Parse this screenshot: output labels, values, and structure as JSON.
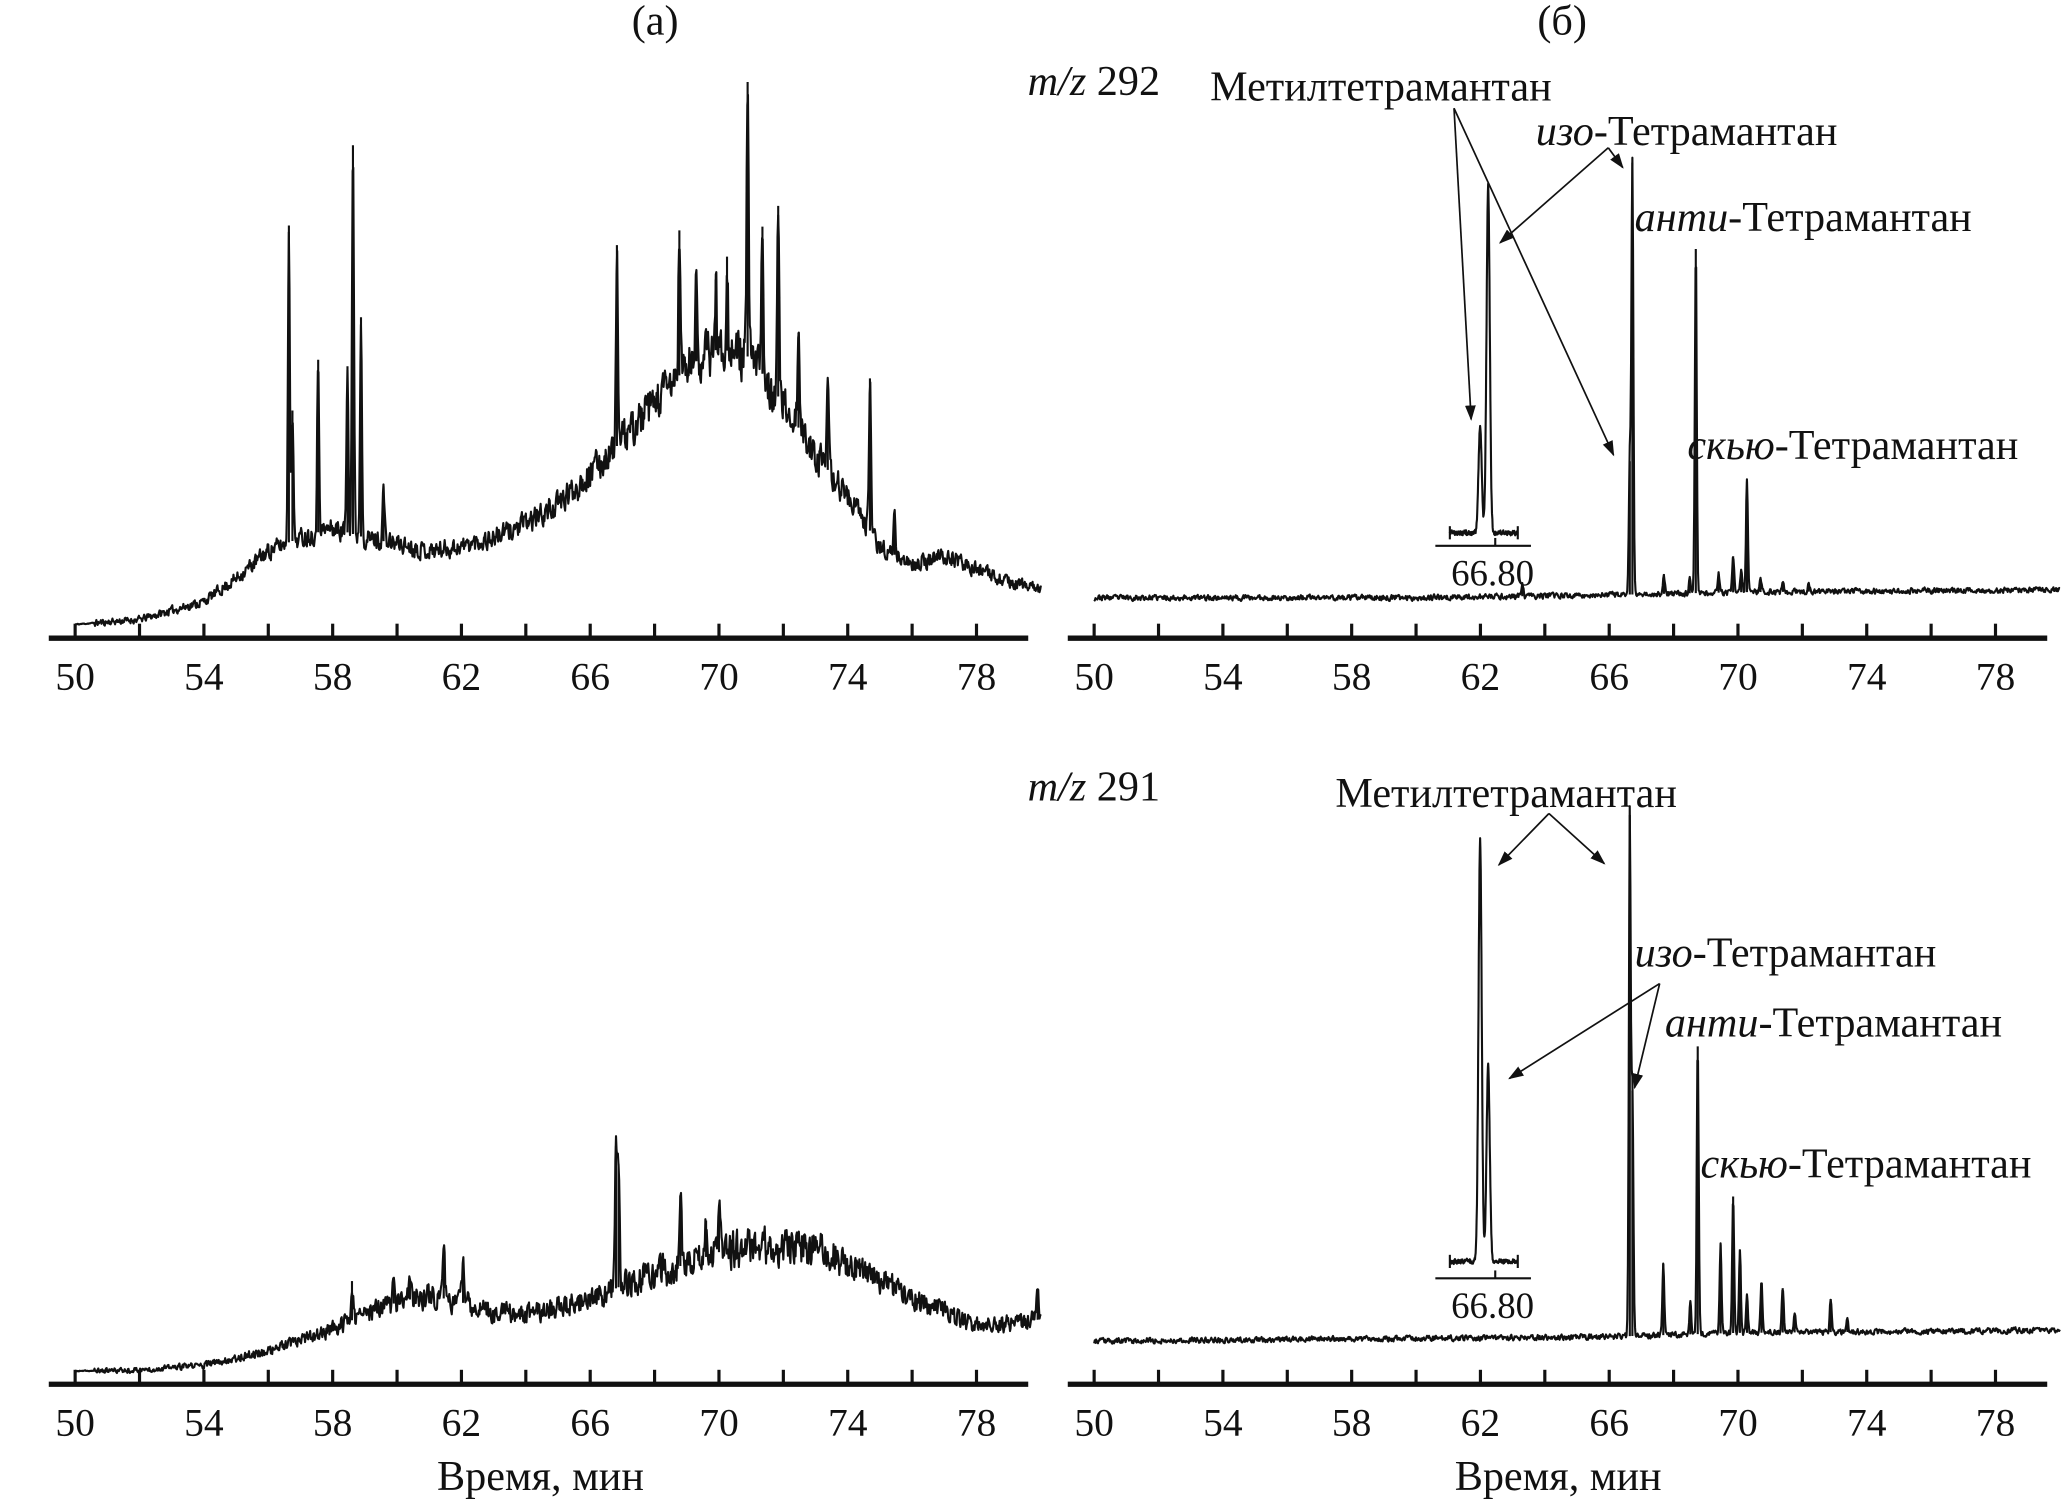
{
  "figure": {
    "panel_labels": [
      "(а)",
      "(б)"
    ],
    "rows": [
      {
        "ion_prefix": "m/z",
        "ion": "292"
      },
      {
        "ion_prefix": "m/z",
        "ion": "291"
      }
    ],
    "xlabel": "Время, мин"
  },
  "annotations": {
    "292": {
      "methyl": "Метилтетрамантан",
      "iso": {
        "prefix": "изо",
        "name": "-Тетрамантан"
      },
      "anti": {
        "prefix": "анти",
        "name": "-Тетрамантан"
      },
      "skew": {
        "prefix": "скью",
        "name": "-Тетрамантан"
      }
    },
    "291": {
      "methyl": "Метилтетрамантан",
      "iso": {
        "prefix": "изо",
        "name": "-Тетрамантан"
      },
      "anti": {
        "prefix": "анти",
        "name": "-Тетрамантан"
      },
      "skew": {
        "prefix": "скью",
        "name": "-Тетрамантан"
      }
    }
  },
  "chart_data": [
    {
      "id": "a-292",
      "panel": "(а)",
      "ion": "m/z 292",
      "type": "line",
      "xlabel": "",
      "xlim": [
        50,
        80
      ],
      "ylim": [
        0,
        105
      ],
      "xticks": [
        50,
        52,
        54,
        56,
        58,
        60,
        62,
        64,
        66,
        68,
        70,
        72,
        74,
        76,
        78
      ],
      "xtick_labels": [
        "50",
        "54",
        "58",
        "62",
        "66",
        "70",
        "74",
        "78"
      ],
      "background": [
        [
          50,
          0.1
        ],
        [
          52,
          1
        ],
        [
          54,
          4.3
        ],
        [
          55,
          8.5
        ],
        [
          56,
          13.6
        ],
        [
          57,
          16
        ],
        [
          58,
          17.8
        ],
        [
          59,
          16
        ],
        [
          60,
          14.9
        ],
        [
          61,
          13.6
        ],
        [
          62,
          14.4
        ],
        [
          63,
          16
        ],
        [
          64,
          18.6
        ],
        [
          65,
          22
        ],
        [
          66,
          27.9
        ],
        [
          67,
          33.8
        ],
        [
          68,
          40.5
        ],
        [
          69,
          47.3
        ],
        [
          70,
          50.7
        ],
        [
          71,
          49
        ],
        [
          72,
          40.5
        ],
        [
          73,
          31.3
        ],
        [
          74,
          23.7
        ],
        [
          75,
          14.4
        ],
        [
          76,
          11
        ],
        [
          77,
          12.7
        ],
        [
          78,
          10.2
        ],
        [
          79,
          7.7
        ],
        [
          80,
          6.8
        ]
      ],
      "peaks": [
        [
          56.64,
          73.2
        ],
        [
          56.75,
          39.3
        ],
        [
          57.55,
          48.6
        ],
        [
          58.46,
          47.4
        ],
        [
          58.63,
          87.9
        ],
        [
          58.88,
          56.4
        ],
        [
          59.58,
          25.4
        ],
        [
          66.83,
          69.6
        ],
        [
          68.77,
          72.3
        ],
        [
          69.3,
          64.1
        ],
        [
          69.9,
          63.3
        ],
        [
          70.25,
          67.5
        ],
        [
          70.89,
          99.5
        ],
        [
          71.35,
          73
        ],
        [
          71.84,
          76.8
        ],
        [
          72.47,
          53.6
        ],
        [
          73.38,
          43.9
        ],
        [
          74.69,
          45.2
        ],
        [
          75.45,
          20.3
        ]
      ]
    },
    {
      "id": "b-292",
      "panel": "(б)",
      "ion": "m/z 292",
      "type": "line",
      "xlabel": "",
      "xlim": [
        50,
        80
      ],
      "ylim": [
        0,
        105
      ],
      "xticks": [
        50,
        52,
        54,
        56,
        58,
        60,
        62,
        64,
        66,
        68,
        70,
        72,
        74,
        76,
        78
      ],
      "xtick_labels": [
        "50",
        "54",
        "58",
        "62",
        "66",
        "70",
        "74",
        "78"
      ],
      "background": [
        [
          50,
          5
        ],
        [
          60,
          5
        ],
        [
          66,
          5.5
        ],
        [
          70,
          6
        ],
        [
          80,
          6.5
        ]
      ],
      "peaks": [
        [
          63.3,
          7.5
        ],
        [
          66.64,
          30
        ],
        [
          66.72,
          84.7
        ],
        [
          67.7,
          9.3
        ],
        [
          68.5,
          8.4
        ],
        [
          68.69,
          68.9
        ],
        [
          69.4,
          9.3
        ],
        [
          69.85,
          12.6
        ],
        [
          70.1,
          9.7
        ],
        [
          70.28,
          26.3
        ],
        [
          70.7,
          8.4
        ],
        [
          71.4,
          7.9
        ],
        [
          72.2,
          7.5
        ]
      ],
      "inset": {
        "label": "66.80",
        "x_range": [
          61.05,
          63.16
        ],
        "center": 62.46,
        "baseline": 16.9,
        "bar_level": 14.5,
        "peaks": [
          [
            61.99,
            36.7
          ],
          [
            62.24,
            80.7
          ]
        ]
      }
    },
    {
      "id": "a-291",
      "panel": "(а)",
      "ion": "m/z 291",
      "type": "line",
      "xlabel": "Время, мин",
      "xlim": [
        50,
        80
      ],
      "ylim": [
        0,
        105
      ],
      "xticks": [
        50,
        52,
        54,
        56,
        58,
        60,
        62,
        64,
        66,
        68,
        70,
        72,
        74,
        76,
        78
      ],
      "xtick_labels": [
        "50",
        "54",
        "58",
        "62",
        "66",
        "70",
        "74",
        "78"
      ],
      "background": [
        [
          50,
          0
        ],
        [
          52,
          0.2
        ],
        [
          54,
          1.1
        ],
        [
          56,
          3.7
        ],
        [
          57,
          5.5
        ],
        [
          58,
          7.7
        ],
        [
          59,
          10.4
        ],
        [
          60,
          12.6
        ],
        [
          61,
          13.9
        ],
        [
          62,
          12.6
        ],
        [
          63,
          10.8
        ],
        [
          64,
          10.4
        ],
        [
          65,
          11.7
        ],
        [
          66,
          13
        ],
        [
          67,
          15.7
        ],
        [
          68,
          17.9
        ],
        [
          69,
          19.6
        ],
        [
          70,
          21.8
        ],
        [
          71,
          22.7
        ],
        [
          72,
          22.7
        ],
        [
          73,
          22.3
        ],
        [
          74,
          20
        ],
        [
          75,
          16.5
        ],
        [
          76,
          13.5
        ],
        [
          77,
          10.8
        ],
        [
          78,
          8.6
        ],
        [
          79,
          8.6
        ],
        [
          80,
          9.5
        ]
      ],
      "peaks": [
        [
          58.6,
          16.5
        ],
        [
          59.9,
          16.5
        ],
        [
          60.4,
          16.5
        ],
        [
          61.45,
          22
        ],
        [
          62.05,
          20
        ],
        [
          66.8,
          41.2
        ],
        [
          66.88,
          38
        ],
        [
          68.8,
          32.2
        ],
        [
          69.6,
          27.6
        ],
        [
          70.0,
          29
        ],
        [
          79.9,
          14.8
        ]
      ]
    },
    {
      "id": "b-291",
      "panel": "(б)",
      "ion": "m/z 291",
      "type": "line",
      "xlabel": "Время, мин",
      "xlim": [
        50,
        80
      ],
      "ylim": [
        0,
        105
      ],
      "xticks": [
        50,
        52,
        54,
        56,
        58,
        60,
        62,
        64,
        66,
        68,
        70,
        72,
        74,
        76,
        78
      ],
      "xtick_labels": [
        "50",
        "54",
        "58",
        "62",
        "66",
        "70",
        "74",
        "78"
      ],
      "background": [
        [
          50,
          5.5
        ],
        [
          60,
          6
        ],
        [
          66,
          6.3
        ],
        [
          70,
          7
        ],
        [
          80,
          7.5
        ]
      ],
      "peaks": [
        [
          66.64,
          101.9
        ],
        [
          66.72,
          51.4
        ],
        [
          67.68,
          19.6
        ],
        [
          68.52,
          12.6
        ],
        [
          68.75,
          59.5
        ],
        [
          69.46,
          23.2
        ],
        [
          69.85,
          32
        ],
        [
          70.06,
          22.3
        ],
        [
          70.28,
          13.9
        ],
        [
          70.73,
          16.1
        ],
        [
          71.39,
          15.2
        ],
        [
          71.76,
          10.4
        ],
        [
          72.88,
          13.2
        ],
        [
          73.4,
          9.3
        ]
      ],
      "inset": {
        "label": "66.80",
        "x_range": [
          61.05,
          63.16
        ],
        "center": 62.46,
        "baseline": 20.1,
        "bar_level": 17,
        "peaks": [
          [
            61.99,
            97.5
          ],
          [
            62.24,
            56
          ]
        ]
      }
    }
  ]
}
